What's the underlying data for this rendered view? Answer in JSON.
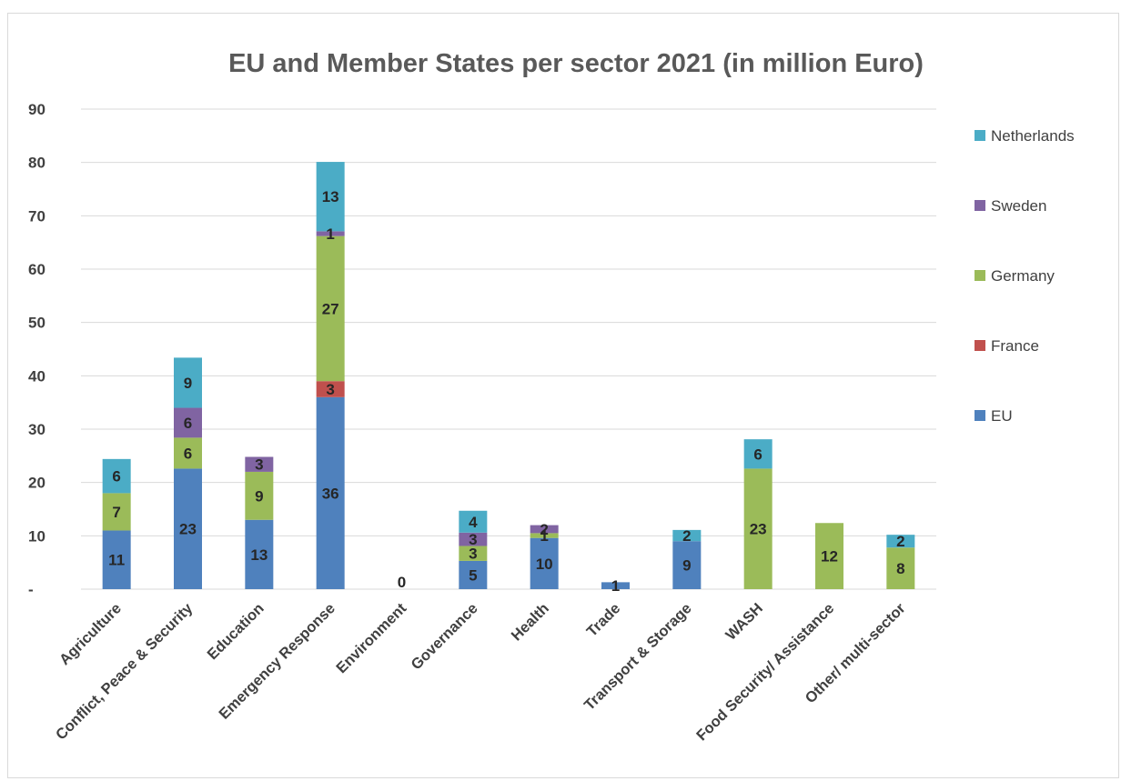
{
  "chart_data": {
    "type": "bar",
    "stacked": true,
    "title": "EU and Member States per sector 2021 (in million Euro)",
    "xlabel": "",
    "ylabel": "",
    "ylim": [
      0,
      90
    ],
    "yticks": [
      {
        "value": 0,
        "label": "-"
      },
      {
        "value": 10,
        "label": "10"
      },
      {
        "value": 20,
        "label": "20"
      },
      {
        "value": 30,
        "label": "30"
      },
      {
        "value": 40,
        "label": "40"
      },
      {
        "value": 50,
        "label": "50"
      },
      {
        "value": 60,
        "label": "60"
      },
      {
        "value": 70,
        "label": "70"
      },
      {
        "value": 80,
        "label": "80"
      },
      {
        "value": 90,
        "label": "90"
      }
    ],
    "grid": true,
    "legend_position": "right",
    "categories": [
      "Agriculture",
      "Conflict, Peace & Security",
      "Education",
      "Emergency Response",
      "Environment",
      "Governance",
      "Health",
      "Trade",
      "Transport & Storage",
      "WASH",
      "Food Security/ Assistance",
      "Other/ multi-sector"
    ],
    "series": [
      {
        "name": "EU",
        "color": "#4f81bd",
        "values": [
          11,
          22.6,
          13,
          36,
          0,
          5.3,
          9.6,
          1.3,
          9,
          0,
          0,
          0
        ],
        "labels": [
          "11",
          "23",
          "13",
          "36",
          "0",
          "5",
          "10",
          "1",
          "9",
          "",
          "",
          ""
        ]
      },
      {
        "name": "France",
        "color": "#c0504d",
        "values": [
          0,
          0,
          0,
          3,
          0,
          0,
          0,
          0,
          0,
          0,
          0,
          0
        ],
        "labels": [
          "",
          "",
          "",
          "3",
          "",
          "",
          "",
          "",
          "",
          "",
          "",
          ""
        ]
      },
      {
        "name": "Germany",
        "color": "#9bbb59",
        "values": [
          7,
          5.8,
          9,
          27.2,
          0,
          2.8,
          0.9,
          0,
          0,
          22.6,
          12.4,
          7.8
        ],
        "labels": [
          "7",
          "6",
          "9",
          "27",
          "",
          "3",
          "1",
          "",
          "",
          "23",
          "12",
          "8"
        ]
      },
      {
        "name": "Sweden",
        "color": "#8064a2",
        "values": [
          0,
          5.6,
          2.8,
          0.9,
          0,
          2.5,
          1.5,
          0,
          0,
          0,
          0,
          0
        ],
        "labels": [
          "",
          "6",
          "3",
          "1",
          "",
          "3",
          "2",
          "",
          "",
          "",
          "",
          ""
        ]
      },
      {
        "name": "Netherlands",
        "color": "#4bacc6",
        "values": [
          6.4,
          9.4,
          0,
          13,
          0,
          4.1,
          0,
          0,
          2.1,
          5.5,
          0,
          2.4
        ],
        "labels": [
          "6",
          "9",
          "",
          "13",
          "",
          "4",
          "",
          "",
          "2",
          "6",
          "",
          "2"
        ]
      }
    ],
    "legend_order": [
      "Netherlands",
      "Sweden",
      "Germany",
      "France",
      "EU"
    ]
  }
}
